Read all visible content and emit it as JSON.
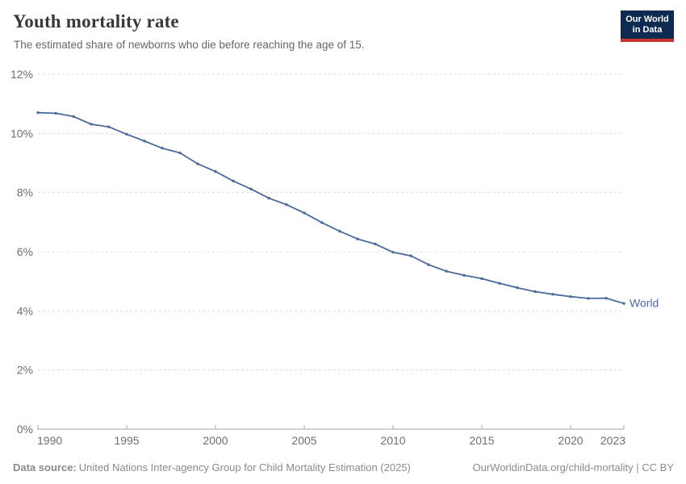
{
  "header": {
    "title": "Youth mortality rate",
    "subtitle": "The estimated share of newborns who die before reaching the age of 15."
  },
  "logo": {
    "line1": "Our World",
    "line2": "in Data"
  },
  "chart_data": {
    "type": "line",
    "title": "Youth mortality rate",
    "x": [
      1990,
      1991,
      1992,
      1993,
      1994,
      1995,
      1996,
      1997,
      1998,
      1999,
      2000,
      2001,
      2002,
      2003,
      2004,
      2005,
      2006,
      2007,
      2008,
      2009,
      2010,
      2011,
      2012,
      2013,
      2014,
      2015,
      2016,
      2017,
      2018,
      2019,
      2020,
      2021,
      2022,
      2023
    ],
    "series": [
      {
        "name": "World",
        "color": "#4c6a9c",
        "values": [
          10.7,
          10.68,
          10.57,
          10.31,
          10.22,
          9.97,
          9.74,
          9.5,
          9.34,
          8.97,
          8.71,
          8.39,
          8.12,
          7.81,
          7.59,
          7.31,
          6.98,
          6.69,
          6.43,
          6.26,
          5.98,
          5.86,
          5.56,
          5.34,
          5.2,
          5.09,
          4.93,
          4.78,
          4.65,
          4.56,
          4.48,
          4.42,
          4.43,
          4.25
        ]
      }
    ],
    "xlabel": "",
    "ylabel": "",
    "xlim": [
      1990,
      2023
    ],
    "ylim": [
      0,
      12
    ],
    "x_ticks": [
      1990,
      1995,
      2000,
      2005,
      2010,
      2015,
      2020,
      2023
    ],
    "x_tick_labels": [
      "1990",
      "1995",
      "2000",
      "2005",
      "2010",
      "2015",
      "2020",
      "2023"
    ],
    "y_ticks": [
      0,
      2,
      4,
      6,
      8,
      10,
      12
    ],
    "y_tick_labels": [
      "0%",
      "2%",
      "4%",
      "6%",
      "8%",
      "10%",
      "12%"
    ],
    "grid": true,
    "legend": "end-of-line-label",
    "series_end_label": "World"
  },
  "footer": {
    "source_label": "Data source:",
    "source_text": "United Nations Inter-agency Group for Child Mortality Estimation (2025)",
    "link_text": "OurWorldinData.org/child-mortality | CC BY"
  },
  "colors": {
    "line": "#4c6a9c",
    "grid": "#dcdcdc",
    "axis": "#a5a5a5",
    "tick_label": "#6e6e6e",
    "logo_bg": "#0f2a50",
    "logo_accent": "#cb342e"
  }
}
